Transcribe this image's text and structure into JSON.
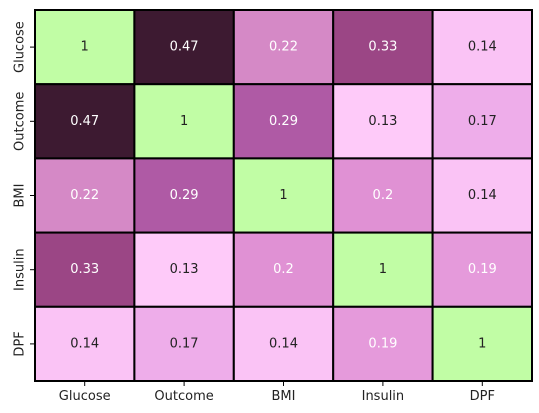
{
  "chart_data": {
    "type": "heatmap",
    "title": "",
    "xlabel": "",
    "ylabel": "",
    "x_categories": [
      "Glucose",
      "Outcome",
      "BMI",
      "Insulin",
      "DPF"
    ],
    "y_categories": [
      "Glucose",
      "Outcome",
      "BMI",
      "Insulin",
      "DPF"
    ],
    "values": [
      [
        1,
        0.47,
        0.22,
        0.33,
        0.14
      ],
      [
        0.47,
        1,
        0.29,
        0.13,
        0.17
      ],
      [
        0.22,
        0.29,
        1,
        0.2,
        0.14
      ],
      [
        0.33,
        0.13,
        0.2,
        1,
        0.19
      ],
      [
        0.14,
        0.17,
        0.14,
        0.19,
        1
      ]
    ],
    "value_labels": [
      [
        "1",
        "0.47",
        "0.22",
        "0.33",
        "0.14"
      ],
      [
        "0.47",
        "1",
        "0.29",
        "0.13",
        "0.17"
      ],
      [
        "0.22",
        "0.29",
        "1",
        "0.2",
        "0.14"
      ],
      [
        "0.33",
        "0.13",
        "0.2",
        "1",
        "0.19"
      ],
      [
        "0.14",
        "0.17",
        "0.14",
        "0.19",
        "1"
      ]
    ],
    "annotations_shown": true,
    "colorbar": false,
    "grid_lines": true,
    "colors": {
      "diagonal": "#c1fda5",
      "scale": [
        "#fecaf9",
        "#eeadea",
        "#e091d4",
        "#d589c6",
        "#af5aa5",
        "#9b4685",
        "#3d1a31"
      ],
      "scale_stops": [
        0.13,
        0.17,
        0.2,
        0.22,
        0.29,
        0.33,
        0.47
      ],
      "grid": "#000000",
      "text_dark": "#222222",
      "text_light": "#ffffff"
    }
  }
}
